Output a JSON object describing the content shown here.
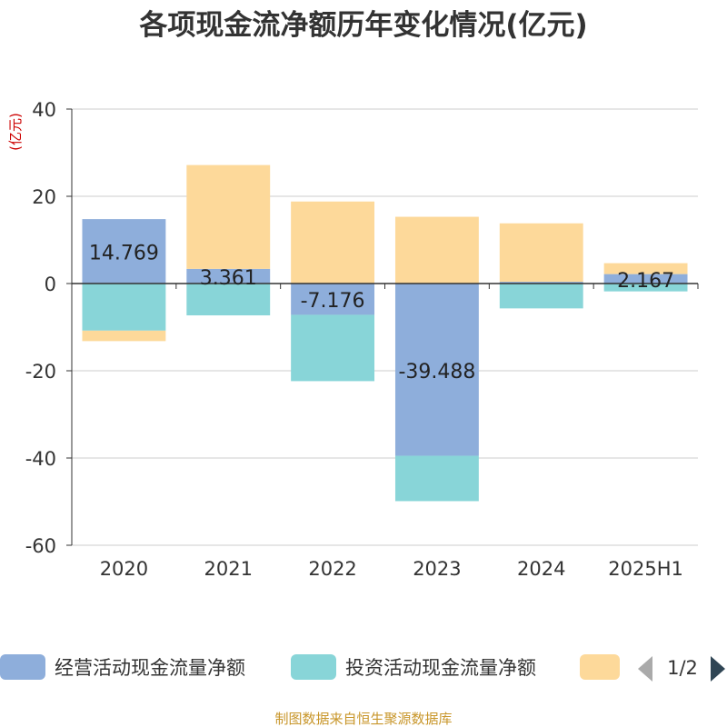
{
  "chart_data": {
    "type": "bar",
    "stacked": true,
    "title": "各项现金流净额历年变化情况(亿元)",
    "y_unit": "(亿元)",
    "ylim": [
      -60,
      40
    ],
    "yticks": [
      40,
      20,
      0,
      -20,
      -40,
      -60
    ],
    "grid": true,
    "categories": [
      "2020",
      "2021",
      "2022",
      "2023",
      "2024",
      "2025H1"
    ],
    "series": [
      {
        "name": "经营活动现金流量净额",
        "color": "#8eaedb",
        "values": [
          14.769,
          3.361,
          -7.176,
          -39.488,
          0.4,
          2.167
        ],
        "labels": [
          "14.769",
          "3.361",
          "-7.176",
          "-39.488",
          "",
          "2.167"
        ]
      },
      {
        "name": "投资活动现金流量净额",
        "color": "#88d5d8",
        "values": [
          -10.8,
          -7.3,
          -15.2,
          -10.4,
          -5.7,
          -1.8
        ],
        "labels": [
          "",
          "",
          "",
          "",
          "",
          ""
        ]
      },
      {
        "name": "",
        "color": "#fdd99a",
        "values": [
          -2.4,
          23.8,
          18.8,
          15.3,
          13.4,
          2.5
        ],
        "labels": [
          "",
          "",
          "",
          "",
          "",
          ""
        ]
      }
    ],
    "legend": {
      "position": "bottom",
      "page": "1/2"
    },
    "source": "制图数据来自恒生聚源数据库"
  }
}
